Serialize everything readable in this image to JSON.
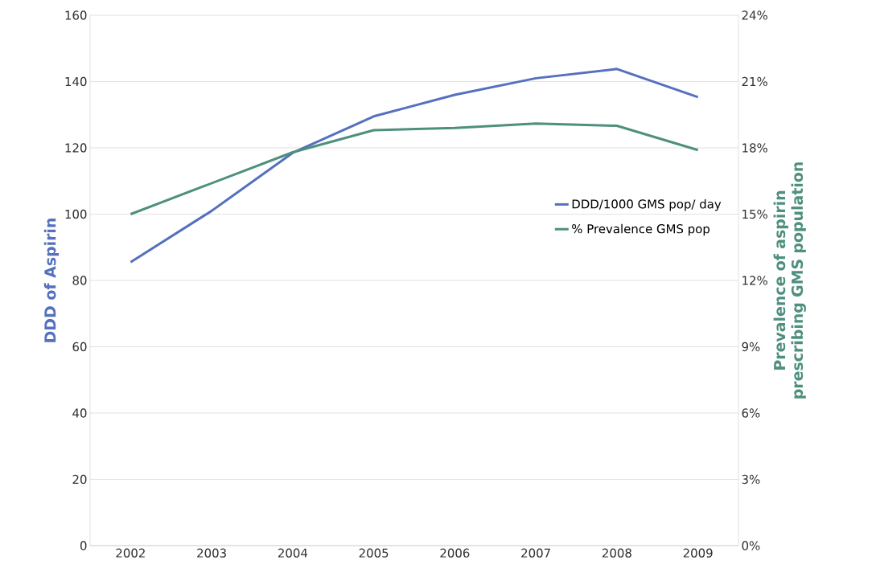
{
  "chart_data": {
    "type": "line",
    "categories": [
      "2002",
      "2003",
      "2004",
      "2005",
      "2006",
      "2007",
      "2008",
      "2009"
    ],
    "series": [
      {
        "name": "DDD/1000 GMS pop/ day",
        "color": "#5470bf",
        "values": [
          85.5,
          101,
          118.5,
          129.5,
          136,
          141,
          143.8,
          135.3
        ]
      },
      {
        "name": "% Prevalence GMS pop",
        "color": "#4e8f7e",
        "axis": "y2",
        "values": [
          15.0,
          16.4,
          17.8,
          18.8,
          18.9,
          19.1,
          19.0,
          17.9
        ]
      }
    ],
    "ylabel": "DDD of Aspirin",
    "y2label": "Prevalence of aspirin prescribing GMS population",
    "ylim": [
      0,
      160
    ],
    "yticks": [
      0,
      20,
      40,
      60,
      80,
      100,
      120,
      140,
      160
    ],
    "y2lim": [
      0,
      24
    ],
    "y2ticks": [
      {
        "value": 0,
        "label": "0%"
      },
      {
        "value": 3,
        "label": "3%"
      },
      {
        "value": 6,
        "label": "6%"
      },
      {
        "value": 9,
        "label": "9%"
      },
      {
        "value": 12,
        "label": "12%"
      },
      {
        "value": 15,
        "label": "15%"
      },
      {
        "value": 18,
        "label": "18%"
      },
      {
        "value": 21,
        "label": "21%"
      },
      {
        "value": 24,
        "label": "24%"
      }
    ],
    "grid": "y",
    "legend": "right",
    "marker": "none",
    "line_style": "solid"
  }
}
